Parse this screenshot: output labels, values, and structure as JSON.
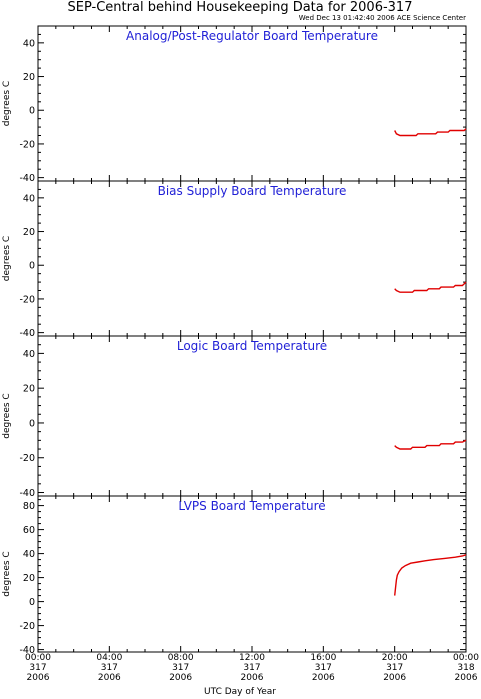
{
  "title": "SEP-Central behind Housekeeping Data for 2006-317",
  "subtitle": "Wed Dec 13 01:42:40 2006 ACE Science Center",
  "xlabel": "UTC Day of Year",
  "x_ticks": [
    {
      "time": "00:00",
      "doy": "317",
      "year": "2006"
    },
    {
      "time": "04:00",
      "doy": "317",
      "year": "2006"
    },
    {
      "time": "08:00",
      "doy": "317",
      "year": "2006"
    },
    {
      "time": "12:00",
      "doy": "317",
      "year": "2006"
    },
    {
      "time": "16:00",
      "doy": "317",
      "year": "2006"
    },
    {
      "time": "20:00",
      "doy": "317",
      "year": "2006"
    },
    {
      "time": "00:00",
      "doy": "318",
      "year": "2006"
    }
  ],
  "colors": {
    "series": "#e00000",
    "panel_title": "#1f1fd6"
  },
  "chart_data": [
    {
      "type": "line",
      "title": "Analog/Post-Regulator Board Temperature",
      "ylabel": "degrees C",
      "xlim": [
        0,
        24
      ],
      "ylim": [
        -42,
        50
      ],
      "yticks": [
        -40,
        -20,
        0,
        20,
        40
      ],
      "series": [
        {
          "values": [
            [
              20.0,
              -12
            ],
            [
              20.1,
              -14
            ],
            [
              20.3,
              -15
            ],
            [
              21.2,
              -15
            ],
            [
              21.3,
              -14
            ],
            [
              22.3,
              -14
            ],
            [
              22.4,
              -13
            ],
            [
              23.0,
              -13
            ],
            [
              23.1,
              -12
            ],
            [
              23.9,
              -12
            ],
            [
              24.0,
              -11
            ]
          ]
        }
      ]
    },
    {
      "type": "line",
      "title": "Bias Supply Board Temperature",
      "ylabel": "degrees C",
      "xlim": [
        0,
        24
      ],
      "ylim": [
        -42,
        50
      ],
      "yticks": [
        -40,
        -20,
        0,
        20,
        40
      ],
      "series": [
        {
          "values": [
            [
              20.0,
              -14
            ],
            [
              20.1,
              -15
            ],
            [
              20.3,
              -16
            ],
            [
              21.0,
              -16
            ],
            [
              21.1,
              -15
            ],
            [
              21.8,
              -15
            ],
            [
              21.9,
              -14
            ],
            [
              22.5,
              -14
            ],
            [
              22.6,
              -13
            ],
            [
              23.3,
              -13
            ],
            [
              23.4,
              -12
            ],
            [
              23.8,
              -12
            ],
            [
              24.0,
              -10
            ]
          ]
        }
      ]
    },
    {
      "type": "line",
      "title": "Logic Board Temperature",
      "ylabel": "degrees C",
      "xlim": [
        0,
        24
      ],
      "ylim": [
        -42,
        50
      ],
      "yticks": [
        -40,
        -20,
        0,
        20,
        40
      ],
      "series": [
        {
          "values": [
            [
              20.0,
              -13
            ],
            [
              20.1,
              -14
            ],
            [
              20.3,
              -15
            ],
            [
              20.9,
              -15
            ],
            [
              21.0,
              -14
            ],
            [
              21.7,
              -14
            ],
            [
              21.8,
              -13
            ],
            [
              22.5,
              -13
            ],
            [
              22.6,
              -12
            ],
            [
              23.3,
              -12
            ],
            [
              23.4,
              -11
            ],
            [
              23.8,
              -11
            ],
            [
              24.0,
              -10
            ]
          ]
        }
      ]
    },
    {
      "type": "line",
      "title": "LVPS Board Temperature",
      "ylabel": "degrees C",
      "xlim": [
        0,
        24
      ],
      "ylim": [
        -42,
        88
      ],
      "yticks": [
        -40,
        -20,
        0,
        20,
        40,
        60,
        80
      ],
      "series": [
        {
          "values": [
            [
              20.0,
              5
            ],
            [
              20.05,
              12
            ],
            [
              20.1,
              18
            ],
            [
              20.15,
              22
            ],
            [
              20.25,
              25
            ],
            [
              20.4,
              28
            ],
            [
              20.6,
              30
            ],
            [
              20.9,
              32
            ],
            [
              21.3,
              33
            ],
            [
              21.7,
              34
            ],
            [
              22.2,
              35
            ],
            [
              22.8,
              36
            ],
            [
              23.4,
              37
            ],
            [
              23.8,
              38
            ],
            [
              24.0,
              39
            ]
          ]
        }
      ]
    }
  ]
}
